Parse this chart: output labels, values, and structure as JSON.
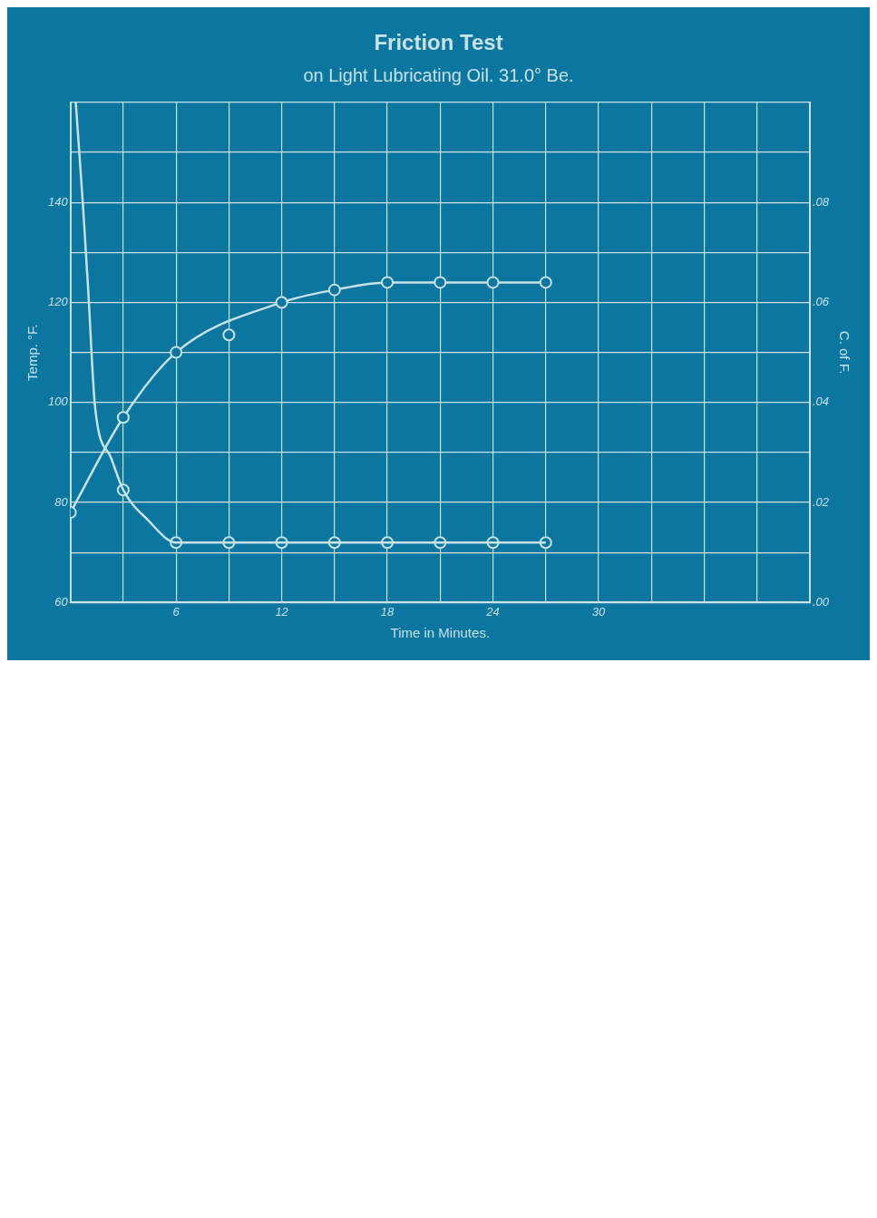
{
  "chart_data": {
    "type": "line",
    "title": "Friction Test",
    "subtitle": "on Light Lubricating Oil. 31.0° Be.",
    "xlabel": "Time in Minutes.",
    "ylabel": "Temp. °F.",
    "y2label": "C. of F.",
    "xlim": [
      0,
      42
    ],
    "xticks": [
      {
        "value": 0,
        "label": null
      },
      {
        "value": 3,
        "label": null
      },
      6,
      {
        "value": 9,
        "label": null
      },
      12,
      {
        "value": 15,
        "label": null
      },
      18,
      {
        "value": 21,
        "label": null
      },
      24,
      {
        "value": 27,
        "label": null
      },
      30,
      {
        "value": 33,
        "label": null
      },
      {
        "value": 36,
        "label": null
      },
      {
        "value": 39,
        "label": null
      },
      {
        "value": 42,
        "label": null
      }
    ],
    "ylim": [
      60,
      160
    ],
    "yticks": [
      60,
      {
        "value": 70,
        "label": null
      },
      80,
      {
        "value": 90,
        "label": null
      },
      100,
      {
        "value": 110,
        "label": null
      },
      120,
      {
        "value": 130,
        "label": null
      },
      140,
      {
        "value": 150,
        "label": null
      },
      {
        "value": 160,
        "label": null
      }
    ],
    "y2lim": [
      0,
      0.1
    ],
    "y2ticks": [
      {
        "value": 0,
        "label": ".00"
      },
      {
        "value": 0.01,
        "label": null
      },
      {
        "value": 0.02,
        "label": ".02"
      },
      {
        "value": 0.03,
        "label": null
      },
      {
        "value": 0.04,
        "label": ".04"
      },
      {
        "value": 0.05,
        "label": null
      },
      {
        "value": 0.06,
        "label": ".06"
      },
      {
        "value": 0.07,
        "label": null
      },
      {
        "value": 0.08,
        "label": ".08"
      },
      {
        "value": 0.09,
        "label": null
      },
      {
        "value": 0.1,
        "label": null
      }
    ],
    "grid": true,
    "legend": false,
    "series": [
      {
        "color": "#c8e2e8",
        "marker": "circle",
        "x": [
          0,
          3,
          6,
          12,
          15,
          18,
          21,
          24,
          27
        ],
        "values": [
          78,
          97,
          110,
          120,
          122.5,
          124,
          124,
          124,
          124
        ]
      },
      {
        "type": "scatter",
        "color": "#c8e2e8",
        "marker": "circle",
        "x": [
          9
        ],
        "values": [
          113.5
        ]
      },
      {
        "axis": "y2",
        "color": "#c8e2e8",
        "marker": "none",
        "x": [
          0.3,
          0.7,
          1,
          1.4,
          2.3,
          3,
          4.4,
          6,
          9,
          12,
          15,
          18,
          21,
          24,
          27
        ],
        "values": [
          0.1,
          0.08,
          0.063,
          0.039,
          0.029,
          0.0225,
          0.0165,
          0.012,
          0.012,
          0.012,
          0.012,
          0.012,
          0.012,
          0.012,
          0.012
        ]
      },
      {
        "type": "scatter",
        "axis": "y2",
        "color": "#c8e2e8",
        "marker": "circle",
        "x": [
          3,
          6,
          9,
          12,
          15,
          18,
          21,
          24,
          27
        ],
        "values": [
          0.0225,
          0.012,
          0.012,
          0.012,
          0.012,
          0.012,
          0.012,
          0.012,
          0.012
        ]
      }
    ]
  }
}
